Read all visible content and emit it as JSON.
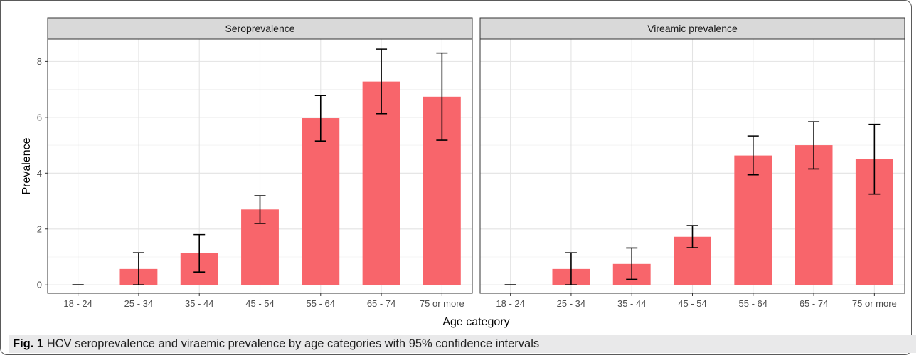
{
  "chart_data": {
    "type": "bar",
    "facets": [
      "Seroprevalence",
      "Vireamic prevalence"
    ],
    "categories": [
      "18 - 24",
      "25 - 34",
      "35 - 44",
      "45 - 54",
      "55 - 64",
      "65 - 74",
      "75 or more"
    ],
    "series": [
      {
        "facet": "Seroprevalence",
        "values": [
          0.0,
          0.57,
          1.13,
          2.7,
          5.97,
          7.28,
          6.74
        ],
        "ci_lower": [
          0.0,
          0.0,
          0.46,
          2.2,
          5.15,
          6.13,
          5.18
        ],
        "ci_upper": [
          0.0,
          1.15,
          1.8,
          3.19,
          6.78,
          8.44,
          8.3
        ]
      },
      {
        "facet": "Vireamic prevalence",
        "values": [
          0.0,
          0.57,
          0.75,
          1.72,
          4.63,
          5.0,
          4.5
        ],
        "ci_lower": [
          0.0,
          0.0,
          0.2,
          1.33,
          3.94,
          4.15,
          3.25
        ],
        "ci_upper": [
          0.0,
          1.15,
          1.32,
          2.12,
          5.33,
          5.84,
          5.75
        ]
      }
    ],
    "xlabel": "Age category",
    "ylabel": "Prevalence",
    "ylim": [
      -0.3,
      8.8
    ],
    "yticks": [
      0,
      2,
      4,
      6,
      8
    ],
    "grid": true,
    "bar_color": "#f8656b",
    "strip_color": "#d9d9d9"
  },
  "caption": {
    "label": "Fig. 1",
    "text": "HCV seroprevalence and viraemic prevalence by age categories with 95% confidence intervals"
  }
}
